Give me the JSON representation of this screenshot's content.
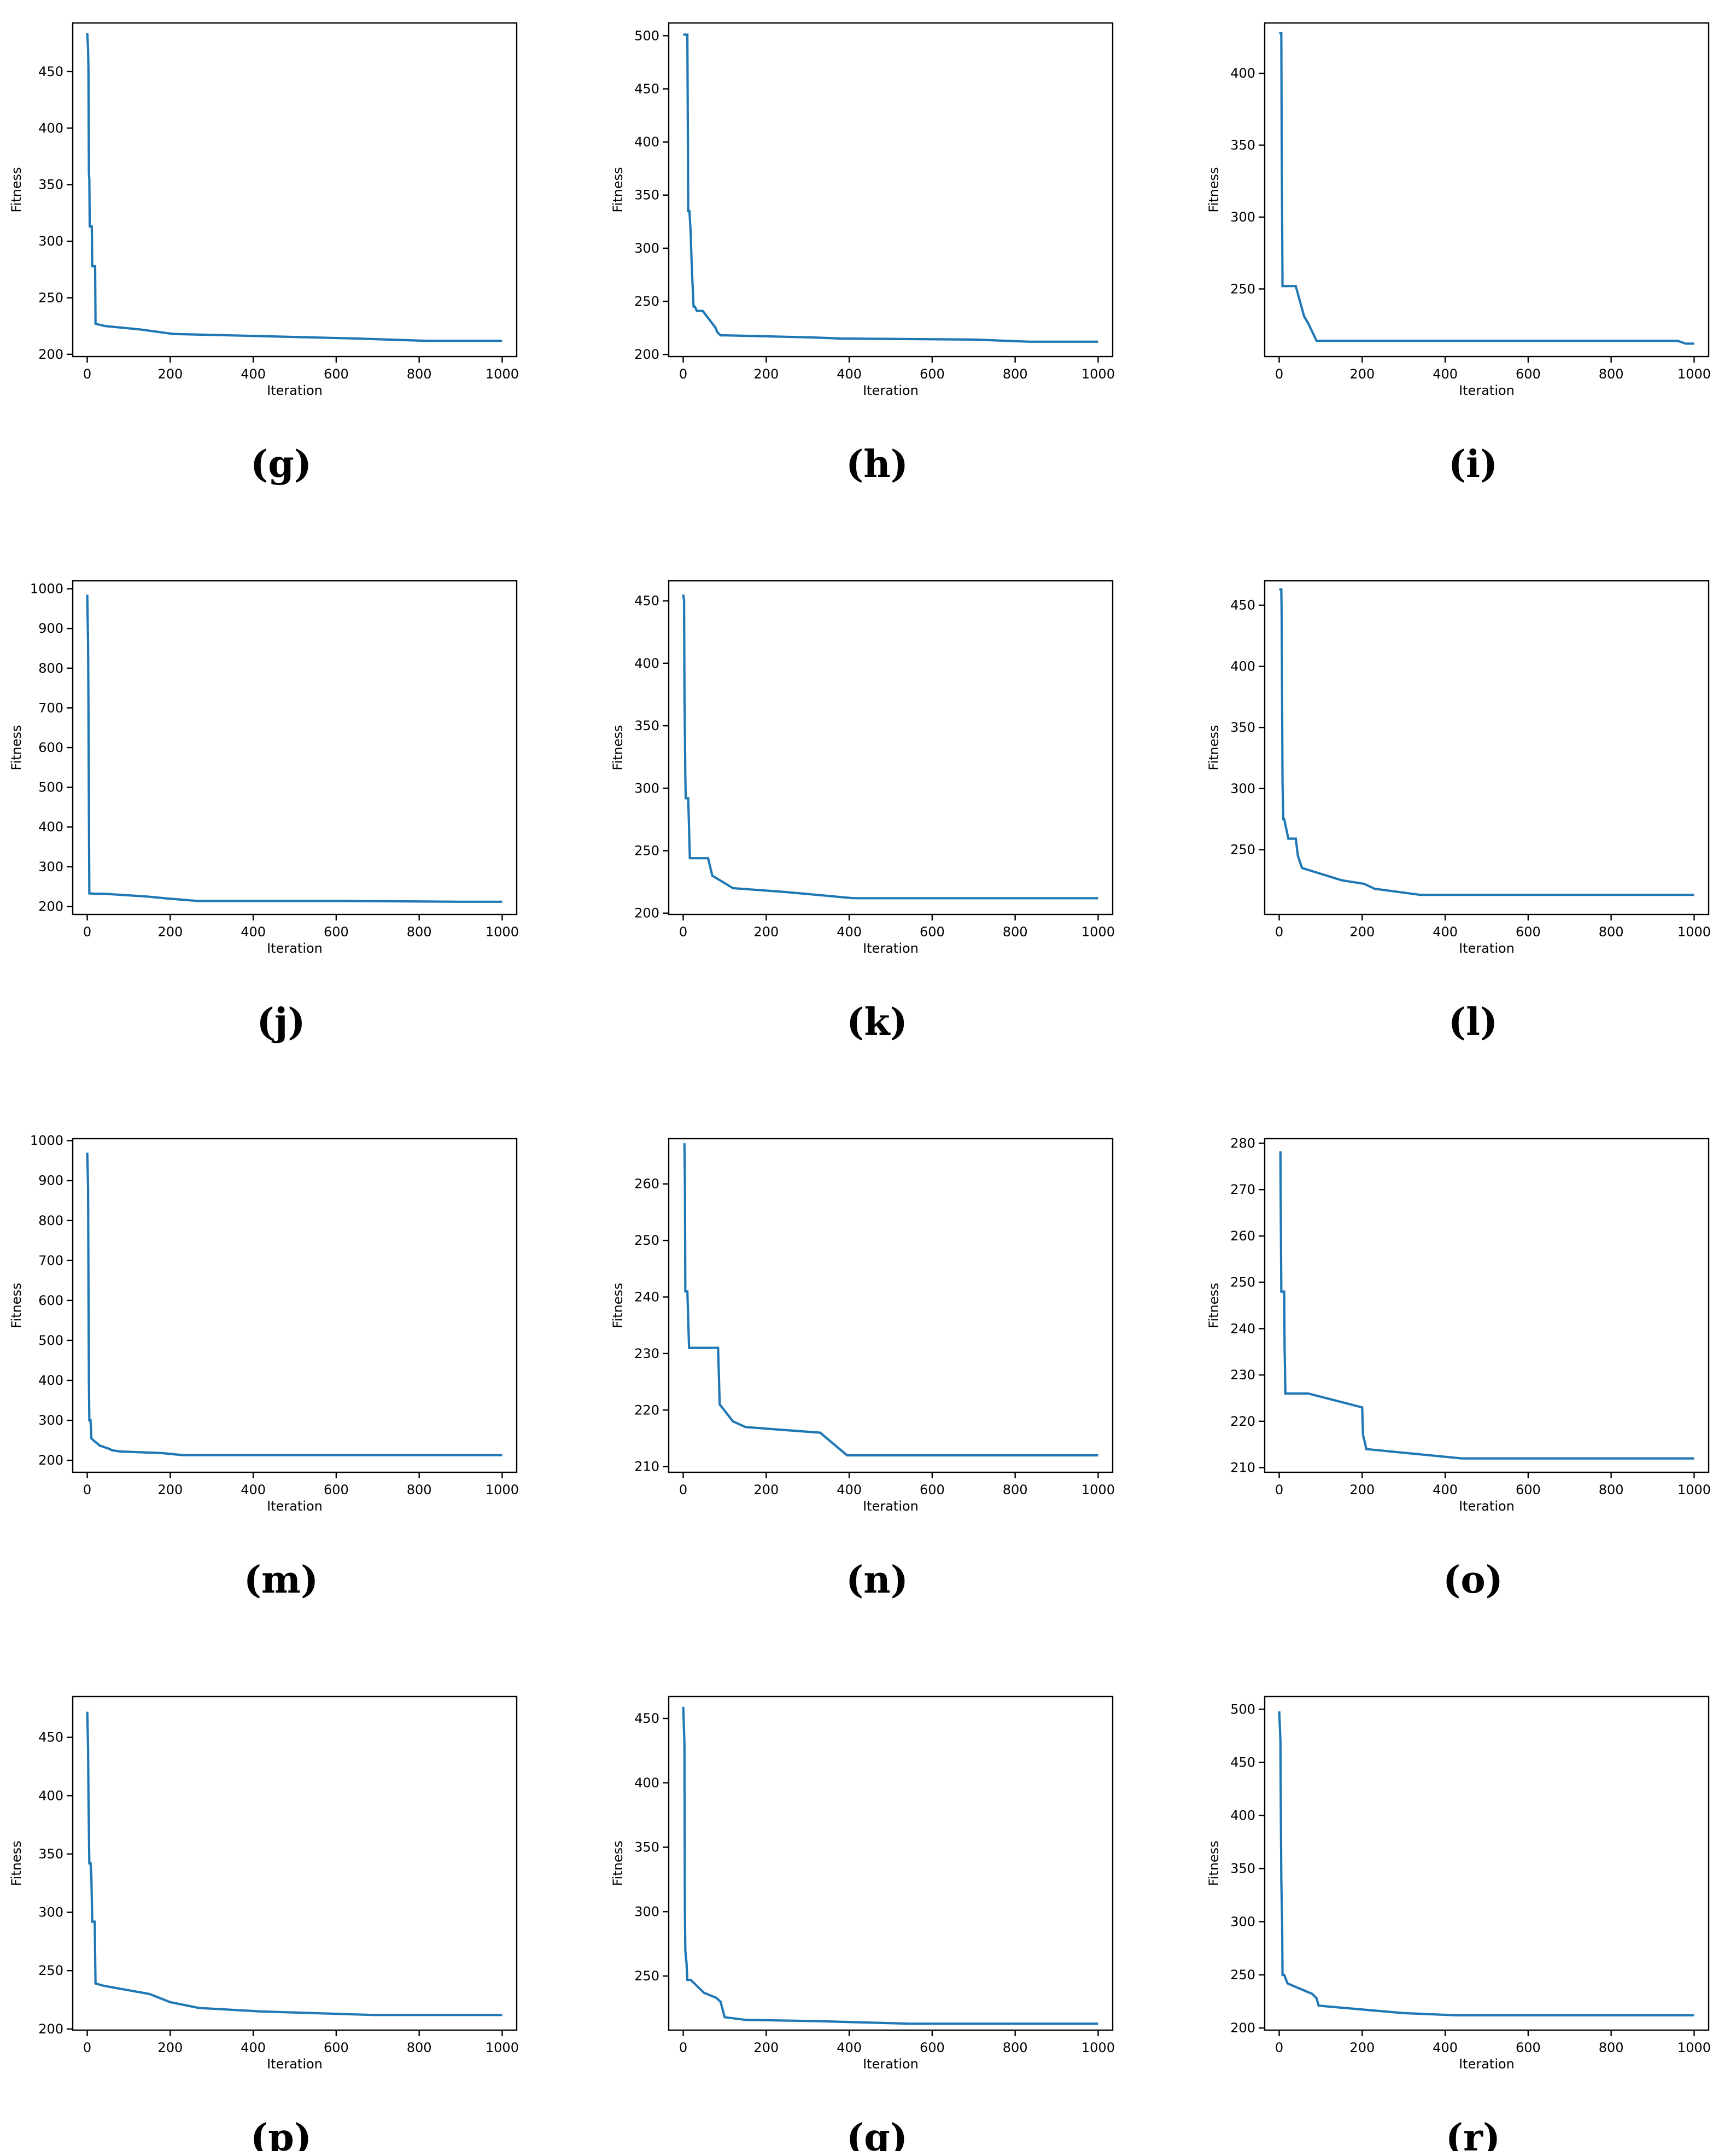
{
  "chart_data": [
    {
      "label": "(g)",
      "type": "line",
      "xlabel": "Iteration",
      "ylabel": "Fitness",
      "xlim": [
        -35,
        1035
      ],
      "ylim": [
        198,
        493
      ],
      "xticks": [
        0,
        200,
        400,
        600,
        800,
        1000
      ],
      "yticks": [
        200,
        250,
        300,
        350,
        400,
        450
      ],
      "x": [
        0,
        2,
        3,
        4,
        5,
        6,
        8,
        11,
        12,
        19,
        20,
        43,
        128,
        207,
        645,
        814,
        1000
      ],
      "y": [
        484,
        470,
        450,
        360,
        355,
        313,
        313,
        313,
        278,
        278,
        227,
        225,
        222,
        218,
        214,
        212,
        212
      ]
    },
    {
      "label": "(h)",
      "type": "line",
      "xlabel": "Iteration",
      "ylabel": "Fitness",
      "xlim": [
        -35,
        1035
      ],
      "ylim": [
        198,
        512
      ],
      "xticks": [
        0,
        200,
        400,
        600,
        800,
        1000
      ],
      "yticks": [
        200,
        250,
        300,
        350,
        400,
        450,
        500
      ],
      "x": [
        0,
        10,
        11,
        12,
        15,
        18,
        20,
        22,
        25,
        28,
        33,
        45,
        47,
        78,
        82,
        90,
        100,
        312,
        380,
        700,
        835,
        1000
      ],
      "y": [
        501,
        501,
        420,
        335,
        335,
        315,
        290,
        270,
        245,
        245,
        241,
        241,
        241,
        225,
        221,
        218,
        218,
        216,
        215,
        214,
        212,
        212
      ]
    },
    {
      "label": "(i)",
      "type": "line",
      "xlabel": "Iteration",
      "ylabel": "Fitness",
      "xlim": [
        -35,
        1035
      ],
      "ylim": [
        203,
        435
      ],
      "xticks": [
        0,
        200,
        400,
        600,
        800,
        1000
      ],
      "yticks": [
        250,
        300,
        350,
        400
      ],
      "x": [
        0,
        5,
        6,
        7,
        8,
        40,
        60,
        70,
        90,
        500,
        960,
        980,
        1000
      ],
      "y": [
        428,
        428,
        355,
        300,
        252,
        252,
        231,
        226,
        214,
        214,
        214,
        212,
        212
      ]
    },
    {
      "label": "(j)",
      "type": "line",
      "xlabel": "Iteration",
      "ylabel": "Fitness",
      "xlim": [
        -35,
        1035
      ],
      "ylim": [
        180,
        1020
      ],
      "xticks": [
        0,
        200,
        400,
        600,
        800,
        1000
      ],
      "yticks": [
        200,
        300,
        400,
        500,
        600,
        700,
        800,
        900,
        1000
      ],
      "x": [
        0,
        2,
        3,
        4,
        5,
        6,
        20,
        40,
        145,
        195,
        265,
        600,
        900,
        1000
      ],
      "y": [
        985,
        860,
        700,
        440,
        233,
        233,
        232,
        232,
        225,
        220,
        214,
        214,
        212,
        212
      ]
    },
    {
      "label": "(k)",
      "type": "line",
      "xlabel": "Iteration",
      "ylabel": "Fitness",
      "xlim": [
        -35,
        1035
      ],
      "ylim": [
        199,
        466
      ],
      "xticks": [
        0,
        200,
        400,
        600,
        800,
        1000
      ],
      "yticks": [
        200,
        250,
        300,
        350,
        400,
        450
      ],
      "x": [
        0,
        2,
        3,
        5,
        6,
        7,
        12,
        16,
        20,
        60,
        70,
        80,
        120,
        245,
        410,
        1000
      ],
      "y": [
        455,
        450,
        380,
        310,
        292,
        292,
        292,
        244,
        244,
        244,
        230,
        228,
        220,
        217,
        212,
        212
      ]
    },
    {
      "label": "(l)",
      "type": "line",
      "xlabel": "Iteration",
      "ylabel": "Fitness",
      "xlim": [
        -35,
        1035
      ],
      "ylim": [
        197,
        470
      ],
      "xticks": [
        0,
        200,
        400,
        600,
        800,
        1000
      ],
      "yticks": [
        250,
        300,
        350,
        400,
        450
      ],
      "x": [
        0,
        5,
        6,
        8,
        10,
        12,
        22,
        40,
        45,
        55,
        150,
        205,
        230,
        340,
        1000
      ],
      "y": [
        463,
        463,
        440,
        305,
        275,
        275,
        259,
        259,
        245,
        235,
        225,
        222,
        218,
        213,
        213
      ]
    },
    {
      "label": "(m)",
      "type": "line",
      "xlabel": "Iteration",
      "ylabel": "Fitness",
      "xlim": [
        -35,
        1035
      ],
      "ylim": [
        170,
        1005
      ],
      "xticks": [
        0,
        200,
        400,
        600,
        800,
        1000
      ],
      "yticks": [
        200,
        300,
        400,
        500,
        600,
        700,
        800,
        900,
        1000
      ],
      "x": [
        0,
        2,
        3,
        4,
        5,
        8,
        10,
        15,
        30,
        50,
        60,
        80,
        180,
        230,
        1000
      ],
      "y": [
        970,
        880,
        640,
        400,
        300,
        300,
        255,
        250,
        237,
        230,
        225,
        222,
        218,
        213,
        213
      ]
    },
    {
      "label": "(n)",
      "type": "line",
      "xlabel": "Iteration",
      "ylabel": "Fitness",
      "xlim": [
        -35,
        1035
      ],
      "ylim": [
        209,
        268
      ],
      "xticks": [
        0,
        200,
        400,
        600,
        800,
        1000
      ],
      "yticks": [
        210,
        220,
        230,
        240,
        250,
        260
      ],
      "x": [
        0,
        3,
        4,
        5,
        10,
        12,
        14,
        84,
        88,
        120,
        150,
        330,
        395,
        1000
      ],
      "y": [
        267,
        267,
        261,
        241,
        241,
        236,
        231,
        231,
        221,
        218,
        217,
        216,
        212,
        212
      ]
    },
    {
      "label": "(o)",
      "type": "line",
      "xlabel": "Iteration",
      "ylabel": "Fitness",
      "xlim": [
        -35,
        1035
      ],
      "ylim": [
        209,
        281
      ],
      "xticks": [
        0,
        200,
        400,
        600,
        800,
        1000
      ],
      "yticks": [
        210,
        220,
        230,
        240,
        250,
        260,
        270,
        280
      ],
      "x": [
        0,
        3,
        4,
        5,
        12,
        13,
        15,
        70,
        200,
        202,
        205,
        210,
        440,
        1000
      ],
      "y": [
        278,
        278,
        262,
        248,
        248,
        236,
        226,
        226,
        223,
        217,
        216,
        214,
        212,
        212
      ]
    },
    {
      "label": "(p)",
      "type": "line",
      "xlabel": "Iteration",
      "ylabel": "Fitness",
      "xlim": [
        -35,
        1035
      ],
      "ylim": [
        199,
        485
      ],
      "xticks": [
        0,
        200,
        400,
        600,
        800,
        1000
      ],
      "yticks": [
        200,
        250,
        300,
        350,
        400,
        450
      ],
      "x": [
        0,
        2,
        3,
        4,
        5,
        8,
        10,
        12,
        18,
        20,
        40,
        150,
        200,
        270,
        420,
        690,
        1000
      ],
      "y": [
        472,
        440,
        400,
        370,
        342,
        342,
        330,
        292,
        292,
        239,
        237,
        230,
        223,
        218,
        215,
        212,
        212
      ]
    },
    {
      "label": "(q)",
      "type": "line",
      "xlabel": "Iteration",
      "ylabel": "Fitness",
      "xlim": [
        -35,
        1035
      ],
      "ylim": [
        208,
        467
      ],
      "xticks": [
        0,
        200,
        400,
        600,
        800,
        1000
      ],
      "yticks": [
        250,
        300,
        350,
        400,
        450
      ],
      "x": [
        0,
        3,
        4,
        5,
        8,
        10,
        18,
        50,
        80,
        90,
        100,
        150,
        320,
        545,
        1000
      ],
      "y": [
        459,
        430,
        300,
        270,
        260,
        247,
        247,
        237,
        233,
        230,
        218,
        216,
        215,
        213,
        213
      ]
    },
    {
      "label": "(r)",
      "type": "line",
      "xlabel": "Iteration",
      "ylabel": "Fitness",
      "xlim": [
        -35,
        1035
      ],
      "ylim": [
        198,
        512
      ],
      "xticks": [
        0,
        200,
        400,
        600,
        800,
        1000
      ],
      "yticks": [
        200,
        250,
        300,
        350,
        400,
        450,
        500
      ],
      "x": [
        0,
        3,
        4,
        5,
        7,
        8,
        12,
        20,
        80,
        90,
        95,
        300,
        425,
        1000
      ],
      "y": [
        498,
        470,
        400,
        340,
        300,
        250,
        250,
        242,
        232,
        228,
        221,
        214,
        212,
        212
      ]
    }
  ]
}
